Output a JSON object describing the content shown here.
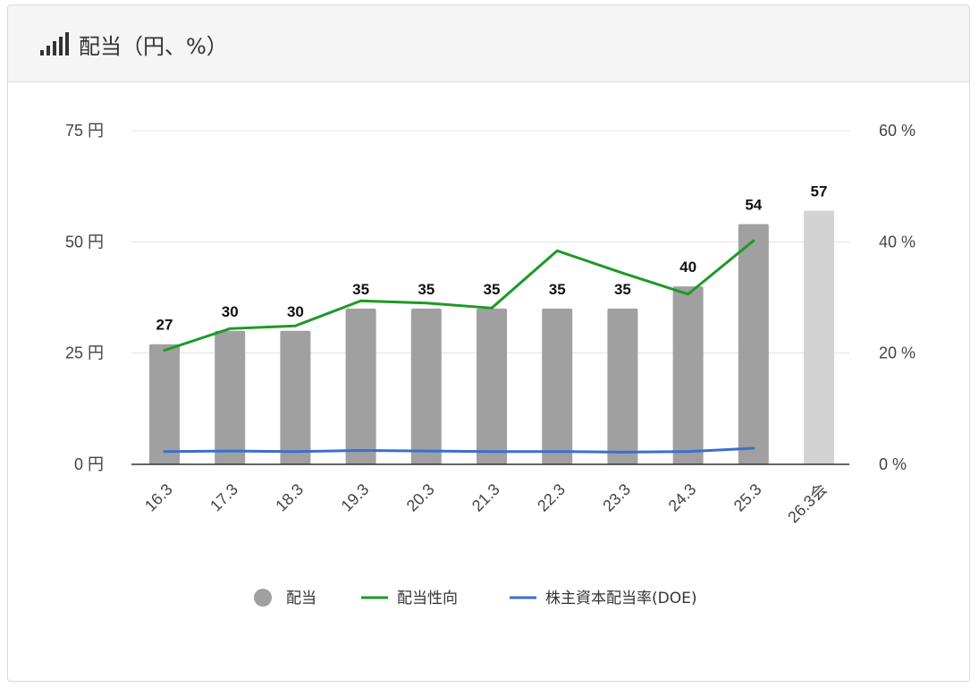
{
  "header": {
    "title": "配当（円、%）",
    "icon": "bar-signal-icon"
  },
  "chart_data": {
    "type": "bar",
    "title": "配当（円、%）",
    "categories": [
      "16.3",
      "17.3",
      "18.3",
      "19.3",
      "20.3",
      "21.3",
      "22.3",
      "23.3",
      "24.3",
      "25.3",
      "26.3会"
    ],
    "left_axis": {
      "ticks": [
        "0 円",
        "25 円",
        "50 円",
        "75 円"
      ],
      "ylim": [
        0,
        75
      ]
    },
    "right_axis": {
      "ticks": [
        "0 %",
        "20 %",
        "40 %",
        "60 %"
      ],
      "ylim": [
        0,
        60
      ]
    },
    "grid": true,
    "legend_position": "bottom",
    "series": [
      {
        "name": "配当",
        "type": "bar",
        "axis": "left",
        "values": [
          27,
          30,
          30,
          35,
          35,
          35,
          35,
          35,
          40,
          54,
          57
        ],
        "labels": [
          "27",
          "30",
          "30",
          "35",
          "35",
          "35",
          "35",
          "35",
          "40",
          "54",
          "57"
        ],
        "color": "#a0a0a0",
        "forecast_color": "#d3d3d3"
      },
      {
        "name": "配当性向",
        "type": "line",
        "axis": "right",
        "values": [
          20.5,
          24.4,
          24.9,
          29.4,
          29.0,
          28.1,
          38.4,
          34.4,
          30.6,
          40.2,
          null
        ],
        "color": "#1e9a25"
      },
      {
        "name": "株主資本配当率(DOE)",
        "type": "line",
        "axis": "right",
        "values": [
          2.3,
          2.4,
          2.3,
          2.5,
          2.4,
          2.3,
          2.3,
          2.2,
          2.3,
          2.9,
          null
        ],
        "color": "#3a6fcf"
      }
    ]
  }
}
